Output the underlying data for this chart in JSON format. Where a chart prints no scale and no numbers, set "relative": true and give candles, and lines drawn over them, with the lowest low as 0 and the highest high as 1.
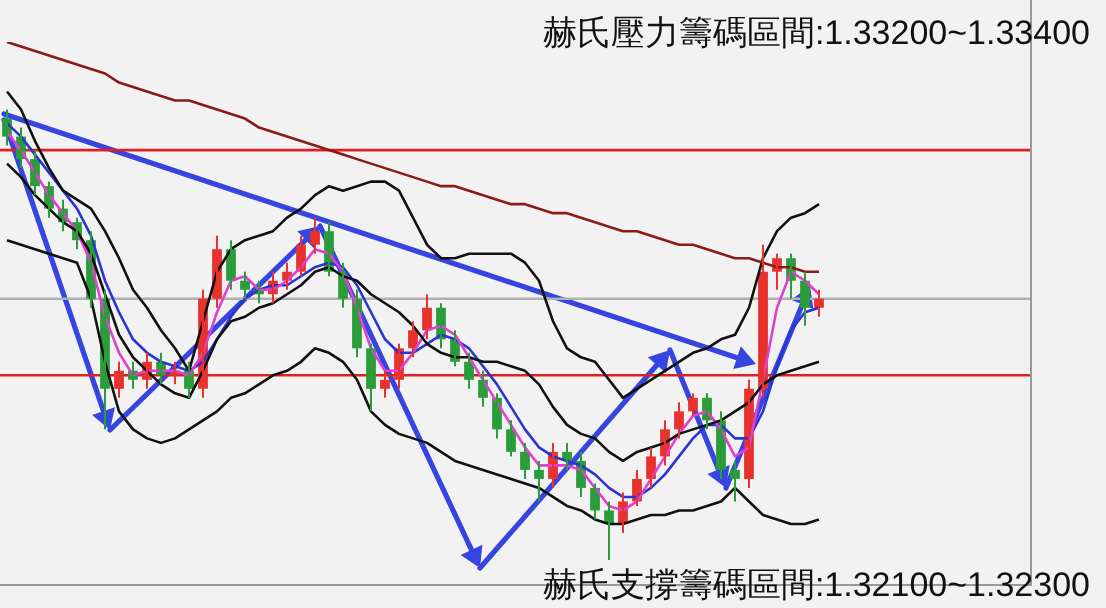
{
  "chart_data": {
    "type": "candlestick",
    "relative": true,
    "tick_labels": false,
    "legend": false,
    "annotations": [
      "赫氏壓力籌碼區間:1.33200~1.33400",
      "赫氏支撐籌碼區間:1.32100~1.32300"
    ],
    "categories": [
      null,
      null,
      null,
      null,
      null,
      null,
      null,
      null,
      null,
      null,
      null,
      null,
      null,
      null,
      null,
      null,
      null,
      null,
      null,
      null,
      null,
      null,
      null,
      null,
      null,
      null,
      null,
      null,
      null,
      null,
      null,
      null,
      null,
      null,
      null,
      null,
      null,
      null,
      null,
      null,
      null,
      null,
      null,
      null,
      null,
      null,
      null,
      null,
      null,
      null,
      null,
      null,
      null,
      null,
      null,
      null,
      null,
      null,
      null
    ],
    "ohlc": [
      [
        0.98,
        1.0,
        0.92,
        0.94
      ],
      [
        0.94,
        0.96,
        0.87,
        0.89
      ],
      [
        0.89,
        0.91,
        0.81,
        0.83
      ],
      [
        0.83,
        0.84,
        0.76,
        0.78
      ],
      [
        0.78,
        0.8,
        0.73,
        0.75
      ],
      [
        0.75,
        0.76,
        0.69,
        0.71
      ],
      [
        0.71,
        0.73,
        0.56,
        0.58
      ],
      [
        0.58,
        0.6,
        0.29,
        0.38
      ],
      [
        0.38,
        0.44,
        0.36,
        0.42
      ],
      [
        0.42,
        0.44,
        0.38,
        0.4
      ],
      [
        0.4,
        0.46,
        0.38,
        0.44
      ],
      [
        0.44,
        0.46,
        0.39,
        0.41
      ],
      [
        0.41,
        0.44,
        0.39,
        0.42
      ],
      [
        0.42,
        0.44,
        0.36,
        0.38
      ],
      [
        0.38,
        0.6,
        0.36,
        0.58
      ],
      [
        0.58,
        0.72,
        0.56,
        0.69
      ],
      [
        0.69,
        0.71,
        0.6,
        0.62
      ],
      [
        0.62,
        0.64,
        0.58,
        0.6
      ],
      [
        0.6,
        0.62,
        0.57,
        0.59
      ],
      [
        0.59,
        0.64,
        0.57,
        0.62
      ],
      [
        0.62,
        0.66,
        0.6,
        0.64
      ],
      [
        0.64,
        0.72,
        0.63,
        0.7
      ],
      [
        0.7,
        0.76,
        0.68,
        0.73
      ],
      [
        0.73,
        0.75,
        0.63,
        0.64
      ],
      [
        0.64,
        0.66,
        0.56,
        0.58
      ],
      [
        0.58,
        0.6,
        0.45,
        0.47
      ],
      [
        0.47,
        0.48,
        0.33,
        0.38
      ],
      [
        0.38,
        0.42,
        0.36,
        0.4
      ],
      [
        0.4,
        0.48,
        0.38,
        0.47
      ],
      [
        0.47,
        0.53,
        0.45,
        0.51
      ],
      [
        0.51,
        0.59,
        0.49,
        0.56
      ],
      [
        0.56,
        0.57,
        0.47,
        0.49
      ],
      [
        0.49,
        0.51,
        0.43,
        0.44
      ],
      [
        0.44,
        0.46,
        0.38,
        0.4
      ],
      [
        0.4,
        0.42,
        0.34,
        0.36
      ],
      [
        0.36,
        0.37,
        0.27,
        0.29
      ],
      [
        0.29,
        0.31,
        0.23,
        0.24
      ],
      [
        0.24,
        0.26,
        0.18,
        0.2
      ],
      [
        0.2,
        0.22,
        0.13,
        0.18
      ],
      [
        0.18,
        0.26,
        0.16,
        0.24
      ],
      [
        0.24,
        0.26,
        0.2,
        0.22
      ],
      [
        0.22,
        0.24,
        0.14,
        0.16
      ],
      [
        0.16,
        0.17,
        0.09,
        0.11
      ],
      [
        0.11,
        0.13,
        0.0,
        0.08
      ],
      [
        0.08,
        0.15,
        0.06,
        0.13
      ],
      [
        0.13,
        0.2,
        0.12,
        0.18
      ],
      [
        0.18,
        0.25,
        0.16,
        0.23
      ],
      [
        0.23,
        0.31,
        0.21,
        0.29
      ],
      [
        0.29,
        0.35,
        0.27,
        0.33
      ],
      [
        0.33,
        0.37,
        0.32,
        0.36
      ],
      [
        0.36,
        0.37,
        0.29,
        0.31
      ],
      [
        0.31,
        0.33,
        0.18,
        0.2
      ],
      [
        0.2,
        0.22,
        0.13,
        0.18
      ],
      [
        0.18,
        0.4,
        0.16,
        0.38
      ],
      [
        0.38,
        0.7,
        0.36,
        0.64
      ],
      [
        0.64,
        0.68,
        0.6,
        0.67
      ],
      [
        0.67,
        0.68,
        0.58,
        0.62
      ],
      [
        0.62,
        0.64,
        0.52,
        0.56
      ],
      [
        0.56,
        0.6,
        0.54,
        0.58
      ]
    ],
    "colors": [
      "#2a9d3a",
      "#2a9d3a",
      "#2a9d3a",
      "#2a9d3a",
      "#2a9d3a",
      "#2a9d3a",
      "#2a9d3a",
      "#2a9d3a",
      "#e8322d",
      "#2a9d3a",
      "#e8322d",
      "#2a9d3a",
      "#e8322d",
      "#2a9d3a",
      "#e8322d",
      "#e8322d",
      "#2a9d3a",
      "#2a9d3a",
      "#2a9d3a",
      "#e8322d",
      "#e8322d",
      "#e8322d",
      "#e8322d",
      "#2a9d3a",
      "#2a9d3a",
      "#2a9d3a",
      "#2a9d3a",
      "#e8322d",
      "#e8322d",
      "#e8322d",
      "#e8322d",
      "#2a9d3a",
      "#2a9d3a",
      "#2a9d3a",
      "#2a9d3a",
      "#2a9d3a",
      "#2a9d3a",
      "#2a9d3a",
      "#2a9d3a",
      "#e8322d",
      "#2a9d3a",
      "#2a9d3a",
      "#2a9d3a",
      "#2a9d3a",
      "#e8322d",
      "#e8322d",
      "#e8322d",
      "#e8322d",
      "#e8322d",
      "#e8322d",
      "#2a9d3a",
      "#2a9d3a",
      "#2a9d3a",
      "#e8322d",
      "#e8322d",
      "#e8322d",
      "#2a9d3a",
      "#2a9d3a",
      "#e8322d"
    ],
    "series": [
      {
        "type": "line",
        "color": "#8b1a1a",
        "values": [
          1.15,
          1.14,
          1.13,
          1.12,
          1.11,
          1.1,
          1.09,
          1.08,
          1.06,
          1.05,
          1.04,
          1.03,
          1.02,
          1.02,
          1.01,
          1.0,
          0.99,
          0.98,
          0.96,
          0.95,
          0.94,
          0.93,
          0.92,
          0.91,
          0.9,
          0.89,
          0.88,
          0.87,
          0.86,
          0.85,
          0.84,
          0.83,
          0.83,
          0.82,
          0.81,
          0.8,
          0.79,
          0.79,
          0.78,
          0.77,
          0.77,
          0.76,
          0.75,
          0.74,
          0.73,
          0.73,
          0.72,
          0.71,
          0.7,
          0.7,
          0.69,
          0.68,
          0.67,
          0.67,
          0.66,
          0.65,
          0.65,
          0.64,
          0.64
        ]
      },
      {
        "type": "line",
        "color": "#111111",
        "values": [
          1.04,
          1.0,
          0.93,
          0.87,
          0.82,
          0.8,
          0.78,
          0.73,
          0.67,
          0.6,
          0.56,
          0.51,
          0.47,
          0.42,
          0.53,
          0.64,
          0.69,
          0.71,
          0.72,
          0.73,
          0.76,
          0.78,
          0.81,
          0.83,
          0.82,
          0.83,
          0.84,
          0.84,
          0.82,
          0.76,
          0.7,
          0.67,
          0.67,
          0.68,
          0.68,
          0.68,
          0.68,
          0.66,
          0.62,
          0.53,
          0.47,
          0.45,
          0.44,
          0.4,
          0.36,
          0.38,
          0.4,
          0.42,
          0.44,
          0.46,
          0.47,
          0.49,
          0.5,
          0.56,
          0.67,
          0.73,
          0.76,
          0.77,
          0.79
        ]
      },
      {
        "type": "line",
        "color": "#111111",
        "values": [
          0.88,
          0.85,
          0.81,
          0.78,
          0.75,
          0.73,
          0.68,
          0.59,
          0.5,
          0.45,
          0.42,
          0.39,
          0.37,
          0.36,
          0.42,
          0.49,
          0.53,
          0.54,
          0.56,
          0.57,
          0.59,
          0.61,
          0.64,
          0.65,
          0.63,
          0.62,
          0.59,
          0.57,
          0.55,
          0.52,
          0.48,
          0.46,
          0.45,
          0.45,
          0.44,
          0.44,
          0.43,
          0.42,
          0.39,
          0.34,
          0.3,
          0.28,
          0.27,
          0.24,
          0.22,
          0.24,
          0.25,
          0.26,
          0.28,
          0.29,
          0.3,
          0.31,
          0.33,
          0.35,
          0.39,
          0.41,
          0.42,
          0.43,
          0.44
        ]
      },
      {
        "type": "line",
        "color": "#111111",
        "values": [
          0.71,
          0.7,
          0.69,
          0.68,
          0.67,
          0.66,
          0.58,
          0.44,
          0.33,
          0.29,
          0.27,
          0.26,
          0.27,
          0.29,
          0.31,
          0.33,
          0.36,
          0.37,
          0.39,
          0.41,
          0.42,
          0.44,
          0.47,
          0.46,
          0.44,
          0.4,
          0.33,
          0.3,
          0.28,
          0.27,
          0.26,
          0.24,
          0.22,
          0.21,
          0.2,
          0.19,
          0.18,
          0.17,
          0.16,
          0.14,
          0.12,
          0.11,
          0.09,
          0.08,
          0.08,
          0.09,
          0.1,
          0.1,
          0.11,
          0.11,
          0.12,
          0.13,
          0.16,
          0.13,
          0.1,
          0.09,
          0.08,
          0.08,
          0.09
        ]
      },
      {
        "type": "line",
        "color": "#e040d0",
        "values": [
          0.95,
          0.91,
          0.86,
          0.81,
          0.77,
          0.73,
          0.66,
          0.54,
          0.46,
          0.41,
          0.42,
          0.42,
          0.42,
          0.41,
          0.46,
          0.55,
          0.62,
          0.63,
          0.6,
          0.6,
          0.62,
          0.65,
          0.69,
          0.68,
          0.64,
          0.56,
          0.47,
          0.42,
          0.42,
          0.46,
          0.51,
          0.52,
          0.5,
          0.45,
          0.4,
          0.35,
          0.3,
          0.25,
          0.21,
          0.21,
          0.21,
          0.2,
          0.16,
          0.12,
          0.11,
          0.13,
          0.18,
          0.23,
          0.28,
          0.32,
          0.33,
          0.29,
          0.23,
          0.25,
          0.4,
          0.56,
          0.64,
          0.62,
          0.59
        ]
      },
      {
        "type": "line",
        "color": "#2a35d0",
        "values": [
          0.97,
          0.94,
          0.9,
          0.86,
          0.82,
          0.78,
          0.72,
          0.62,
          0.55,
          0.49,
          0.46,
          0.44,
          0.43,
          0.42,
          0.44,
          0.49,
          0.54,
          0.58,
          0.6,
          0.61,
          0.61,
          0.63,
          0.65,
          0.66,
          0.65,
          0.61,
          0.55,
          0.49,
          0.46,
          0.46,
          0.48,
          0.5,
          0.49,
          0.47,
          0.43,
          0.39,
          0.34,
          0.29,
          0.25,
          0.23,
          0.22,
          0.21,
          0.19,
          0.16,
          0.14,
          0.14,
          0.16,
          0.19,
          0.23,
          0.27,
          0.3,
          0.3,
          0.27,
          0.27,
          0.33,
          0.43,
          0.51,
          0.55,
          0.56
        ]
      }
    ],
    "ref_lines": [
      {
        "axis": "y",
        "value": 0.91,
        "label": null,
        "color": "#e02020"
      },
      {
        "axis": "y",
        "value": 0.41,
        "label": null,
        "color": "#e02020"
      },
      {
        "axis": "y",
        "value": 0.58,
        "label": null,
        "color": "#b0b0b0"
      }
    ]
  }
}
